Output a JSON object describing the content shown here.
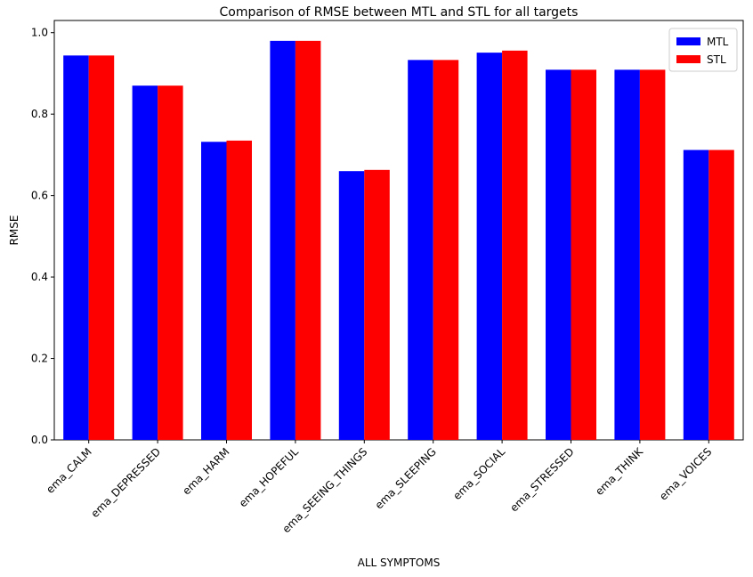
{
  "chart_data": {
    "type": "bar",
    "title": "Comparison of RMSE between MTL and STL for all targets",
    "xlabel": "ALL SYMPTOMS",
    "ylabel": "RMSE",
    "ylim": [
      0,
      1.03
    ],
    "yticks": [
      "0.0",
      "0.2",
      "0.4",
      "0.6",
      "0.8",
      "1.0"
    ],
    "categories": [
      "ema_CALM",
      "ema_DEPRESSED",
      "ema_HARM",
      "ema_HOPEFUL",
      "ema_SEEING_THINGS",
      "ema_SLEEPING",
      "ema_SOCIAL",
      "ema_STRESSED",
      "ema_THINK",
      "ema_VOICES"
    ],
    "series": [
      {
        "name": "MTL",
        "color": "#0000ff",
        "values": [
          0.944,
          0.87,
          0.732,
          0.98,
          0.66,
          0.933,
          0.951,
          0.909,
          0.909,
          0.712
        ]
      },
      {
        "name": "STL",
        "color": "#ff0000",
        "values": [
          0.944,
          0.87,
          0.735,
          0.98,
          0.663,
          0.933,
          0.956,
          0.909,
          0.909,
          0.712
        ]
      }
    ],
    "legend": "top-right",
    "grid": false
  }
}
